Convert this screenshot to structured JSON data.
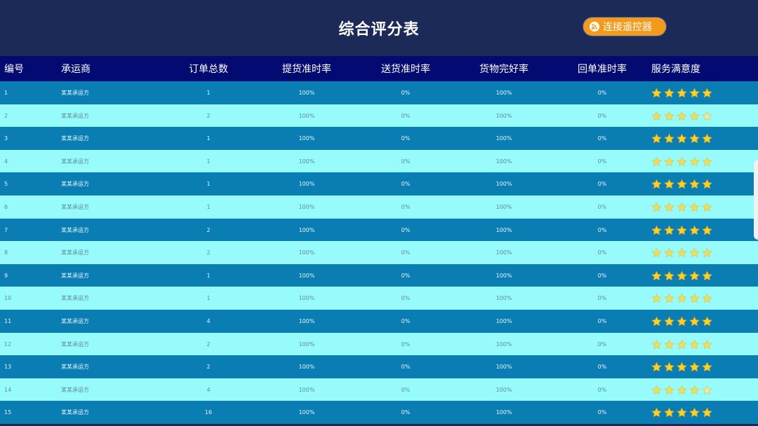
{
  "header": {
    "title": "综合评分表",
    "connect_button": "连接遥控器",
    "connect_icon": "wifi-signal-icon"
  },
  "colors": {
    "title_bg": "#1c2a58",
    "header_bg": "#030b72",
    "row_dark": "#0a7db3",
    "row_light": "#97fbfb",
    "button": "#f39a1c",
    "star": "#f7d22a"
  },
  "table": {
    "columns": [
      "编号",
      "承运商",
      "订单总数",
      "提货准时率",
      "送货准时率",
      "货物完好率",
      "回单准时率",
      "服务满意度"
    ],
    "rows": [
      {
        "id": "1",
        "carrier": "某某承运方",
        "orders": "1",
        "pickup": "100%",
        "delivery": "0%",
        "intact": "100%",
        "receipt": "0%",
        "rating": 5
      },
      {
        "id": "2",
        "carrier": "某某承运方",
        "orders": "2",
        "pickup": "100%",
        "delivery": "0%",
        "intact": "100%",
        "receipt": "0%",
        "rating": 4.5
      },
      {
        "id": "3",
        "carrier": "某某承运方",
        "orders": "1",
        "pickup": "100%",
        "delivery": "0%",
        "intact": "100%",
        "receipt": "0%",
        "rating": 5
      },
      {
        "id": "4",
        "carrier": "某某承运方",
        "orders": "1",
        "pickup": "100%",
        "delivery": "0%",
        "intact": "100%",
        "receipt": "0%",
        "rating": 5
      },
      {
        "id": "5",
        "carrier": "某某承运方",
        "orders": "1",
        "pickup": "100%",
        "delivery": "0%",
        "intact": "100%",
        "receipt": "0%",
        "rating": 5
      },
      {
        "id": "6",
        "carrier": "某某承运方",
        "orders": "1",
        "pickup": "100%",
        "delivery": "0%",
        "intact": "100%",
        "receipt": "0%",
        "rating": 5
      },
      {
        "id": "7",
        "carrier": "某某承运方",
        "orders": "2",
        "pickup": "100%",
        "delivery": "0%",
        "intact": "100%",
        "receipt": "0%",
        "rating": 5
      },
      {
        "id": "8",
        "carrier": "某某承运方",
        "orders": "2",
        "pickup": "100%",
        "delivery": "0%",
        "intact": "100%",
        "receipt": "0%",
        "rating": 5
      },
      {
        "id": "9",
        "carrier": "某某承运方",
        "orders": "1",
        "pickup": "100%",
        "delivery": "0%",
        "intact": "100%",
        "receipt": "0%",
        "rating": 5
      },
      {
        "id": "10",
        "carrier": "某某承运方",
        "orders": "1",
        "pickup": "100%",
        "delivery": "0%",
        "intact": "100%",
        "receipt": "0%",
        "rating": 5
      },
      {
        "id": "11",
        "carrier": "某某承运方",
        "orders": "4",
        "pickup": "100%",
        "delivery": "0%",
        "intact": "100%",
        "receipt": "0%",
        "rating": 5
      },
      {
        "id": "12",
        "carrier": "某某承运方",
        "orders": "2",
        "pickup": "100%",
        "delivery": "0%",
        "intact": "100%",
        "receipt": "0%",
        "rating": 5
      },
      {
        "id": "13",
        "carrier": "某某承运方",
        "orders": "2",
        "pickup": "100%",
        "delivery": "0%",
        "intact": "100%",
        "receipt": "0%",
        "rating": 5
      },
      {
        "id": "14",
        "carrier": "某某承运方",
        "orders": "4",
        "pickup": "100%",
        "delivery": "0%",
        "intact": "100%",
        "receipt": "0%",
        "rating": 4.5
      },
      {
        "id": "15",
        "carrier": "某某承运方",
        "orders": "16",
        "pickup": "100%",
        "delivery": "0%",
        "intact": "100%",
        "receipt": "0%",
        "rating": 5
      }
    ]
  }
}
